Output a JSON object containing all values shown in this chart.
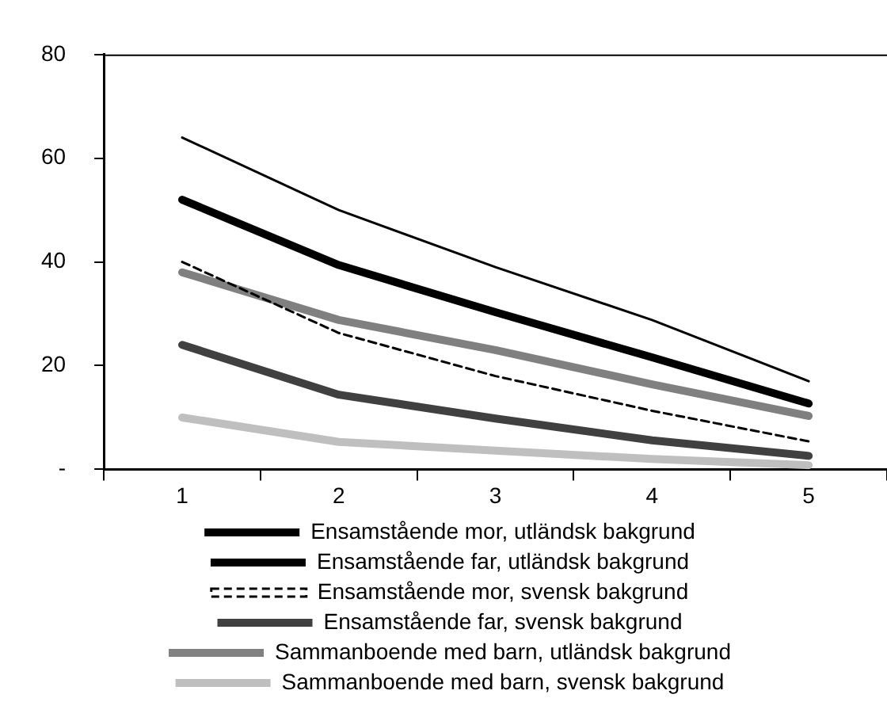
{
  "chart_data": {
    "type": "line",
    "categories": [
      "1",
      "2",
      "3",
      "4",
      "5"
    ],
    "series": [
      {
        "name": "Ensamstående mor, utländsk bakgrund",
        "color": "#000000",
        "values": [
          64,
          50,
          39,
          28.8,
          17
        ]
      },
      {
        "name": "Ensamstående far, utländsk bakgrund",
        "color": "#000000",
        "values": [
          52,
          39.4,
          30.3,
          21.6,
          12.7
        ]
      },
      {
        "name": "Ensamstående mor, svensk bakgrund",
        "color": "#000000",
        "line_style": "dashed",
        "values": [
          40,
          26.3,
          18,
          11.3,
          5.4
        ]
      },
      {
        "name": "Ensamstående far, svensk bakgrund",
        "color": "#404040",
        "values": [
          24,
          14.4,
          9.8,
          5.6,
          2.6
        ]
      },
      {
        "name": "Sammanboende med barn, utländsk bakgrund",
        "color": "#808080",
        "values": [
          38,
          28.8,
          23,
          16.4,
          10.3
        ]
      },
      {
        "name": "Sammanboende med barn, svensk bakgrund",
        "color": "#bfbfbf",
        "values": [
          10,
          5.3,
          3.6,
          2,
          0.8
        ]
      }
    ],
    "ylim": [
      0,
      80
    ],
    "yticks": [
      {
        "value": 0,
        "label": "-"
      },
      20,
      40,
      60,
      80
    ],
    "grid": false,
    "legend": "bottom",
    "marker": "none",
    "line_style": "solid"
  }
}
